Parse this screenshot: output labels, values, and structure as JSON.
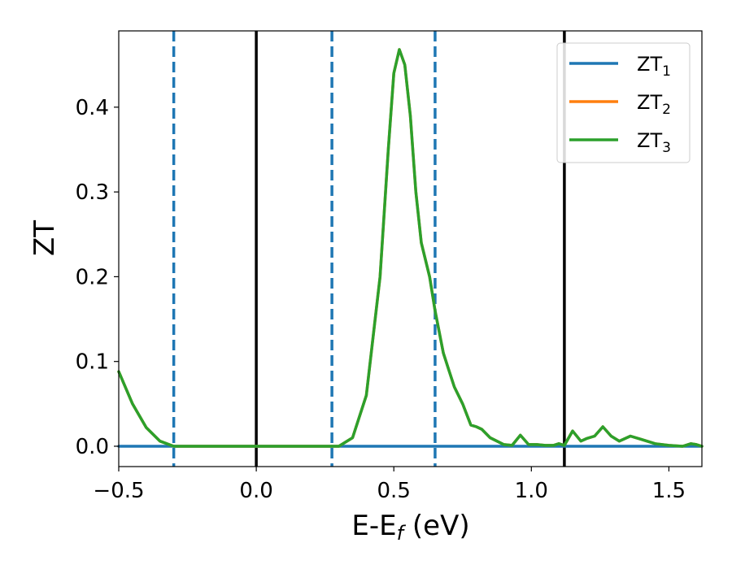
{
  "chart_data": {
    "type": "line",
    "xlabel": "E-E",
    "xlabel_sub": "f",
    "xlabel_unit": " (eV)",
    "ylabel": "ZT",
    "xlim": [
      -0.5,
      1.62
    ],
    "ylim": [
      -0.024,
      0.49
    ],
    "xticks": [
      -0.5,
      0.0,
      0.5,
      1.0,
      1.5
    ],
    "xtick_labels": [
      "−0.5",
      "0.0",
      "0.5",
      "1.0",
      "1.5"
    ],
    "yticks": [
      0.0,
      0.1,
      0.2,
      0.3,
      0.4
    ],
    "ytick_labels": [
      "0.0",
      "0.1",
      "0.2",
      "0.3",
      "0.4"
    ],
    "grid": false,
    "legend_position": "top-right",
    "solid_vlines": [
      0.0,
      1.12
    ],
    "dashed_vlines": [
      -0.3,
      0.275,
      0.65
    ],
    "vline_colors": {
      "solid": "#000000",
      "dashed": "#1f77b4"
    },
    "series": [
      {
        "name": "ZT",
        "subscript": "1",
        "color": "#1f77b4",
        "x": [
          -0.5,
          1.62
        ],
        "y": [
          0.0,
          0.0
        ]
      },
      {
        "name": "ZT",
        "subscript": "2",
        "color": "#ff7f0e",
        "x": [
          -0.5,
          -0.45,
          -0.4,
          -0.35,
          -0.3,
          -0.2,
          0.0,
          0.2,
          0.3,
          0.35,
          0.4,
          0.45,
          0.48,
          0.5,
          0.52,
          0.54,
          0.56,
          0.58,
          0.6,
          0.63,
          0.65,
          0.68,
          0.7,
          0.72,
          0.75,
          0.78,
          0.8,
          0.82,
          0.85,
          0.9,
          0.93,
          0.96,
          0.99,
          1.02,
          1.05,
          1.08,
          1.1,
          1.12,
          1.15,
          1.18,
          1.2,
          1.23,
          1.26,
          1.29,
          1.32,
          1.36,
          1.4,
          1.45,
          1.5,
          1.55,
          1.58,
          1.6,
          1.62
        ],
        "y": [
          0.088,
          0.05,
          0.022,
          0.006,
          0.0,
          0.0,
          0.0,
          0.0,
          0.0,
          0.01,
          0.06,
          0.2,
          0.35,
          0.44,
          0.468,
          0.45,
          0.39,
          0.3,
          0.24,
          0.2,
          0.16,
          0.11,
          0.09,
          0.07,
          0.05,
          0.025,
          0.023,
          0.02,
          0.01,
          0.002,
          0.001,
          0.013,
          0.002,
          0.002,
          0.001,
          0.001,
          0.003,
          0.001,
          0.018,
          0.006,
          0.009,
          0.012,
          0.023,
          0.012,
          0.006,
          0.012,
          0.008,
          0.003,
          0.001,
          0.0,
          0.003,
          0.002,
          0.0
        ]
      },
      {
        "name": "ZT",
        "subscript": "3",
        "color": "#2ca02c",
        "x": [
          -0.5,
          -0.45,
          -0.4,
          -0.35,
          -0.3,
          -0.2,
          0.0,
          0.2,
          0.3,
          0.35,
          0.4,
          0.45,
          0.48,
          0.5,
          0.52,
          0.54,
          0.56,
          0.58,
          0.6,
          0.63,
          0.65,
          0.68,
          0.7,
          0.72,
          0.75,
          0.78,
          0.8,
          0.82,
          0.85,
          0.9,
          0.93,
          0.96,
          0.99,
          1.02,
          1.05,
          1.08,
          1.1,
          1.12,
          1.15,
          1.18,
          1.2,
          1.23,
          1.26,
          1.29,
          1.32,
          1.36,
          1.4,
          1.45,
          1.5,
          1.55,
          1.58,
          1.6,
          1.62
        ],
        "y": [
          0.088,
          0.05,
          0.022,
          0.006,
          0.0,
          0.0,
          0.0,
          0.0,
          0.0,
          0.01,
          0.06,
          0.2,
          0.35,
          0.44,
          0.468,
          0.45,
          0.39,
          0.3,
          0.24,
          0.2,
          0.16,
          0.11,
          0.09,
          0.07,
          0.05,
          0.025,
          0.023,
          0.02,
          0.01,
          0.002,
          0.001,
          0.013,
          0.002,
          0.002,
          0.001,
          0.001,
          0.003,
          0.001,
          0.018,
          0.006,
          0.009,
          0.012,
          0.023,
          0.012,
          0.006,
          0.012,
          0.008,
          0.003,
          0.001,
          0.0,
          0.003,
          0.002,
          0.0
        ]
      }
    ]
  }
}
